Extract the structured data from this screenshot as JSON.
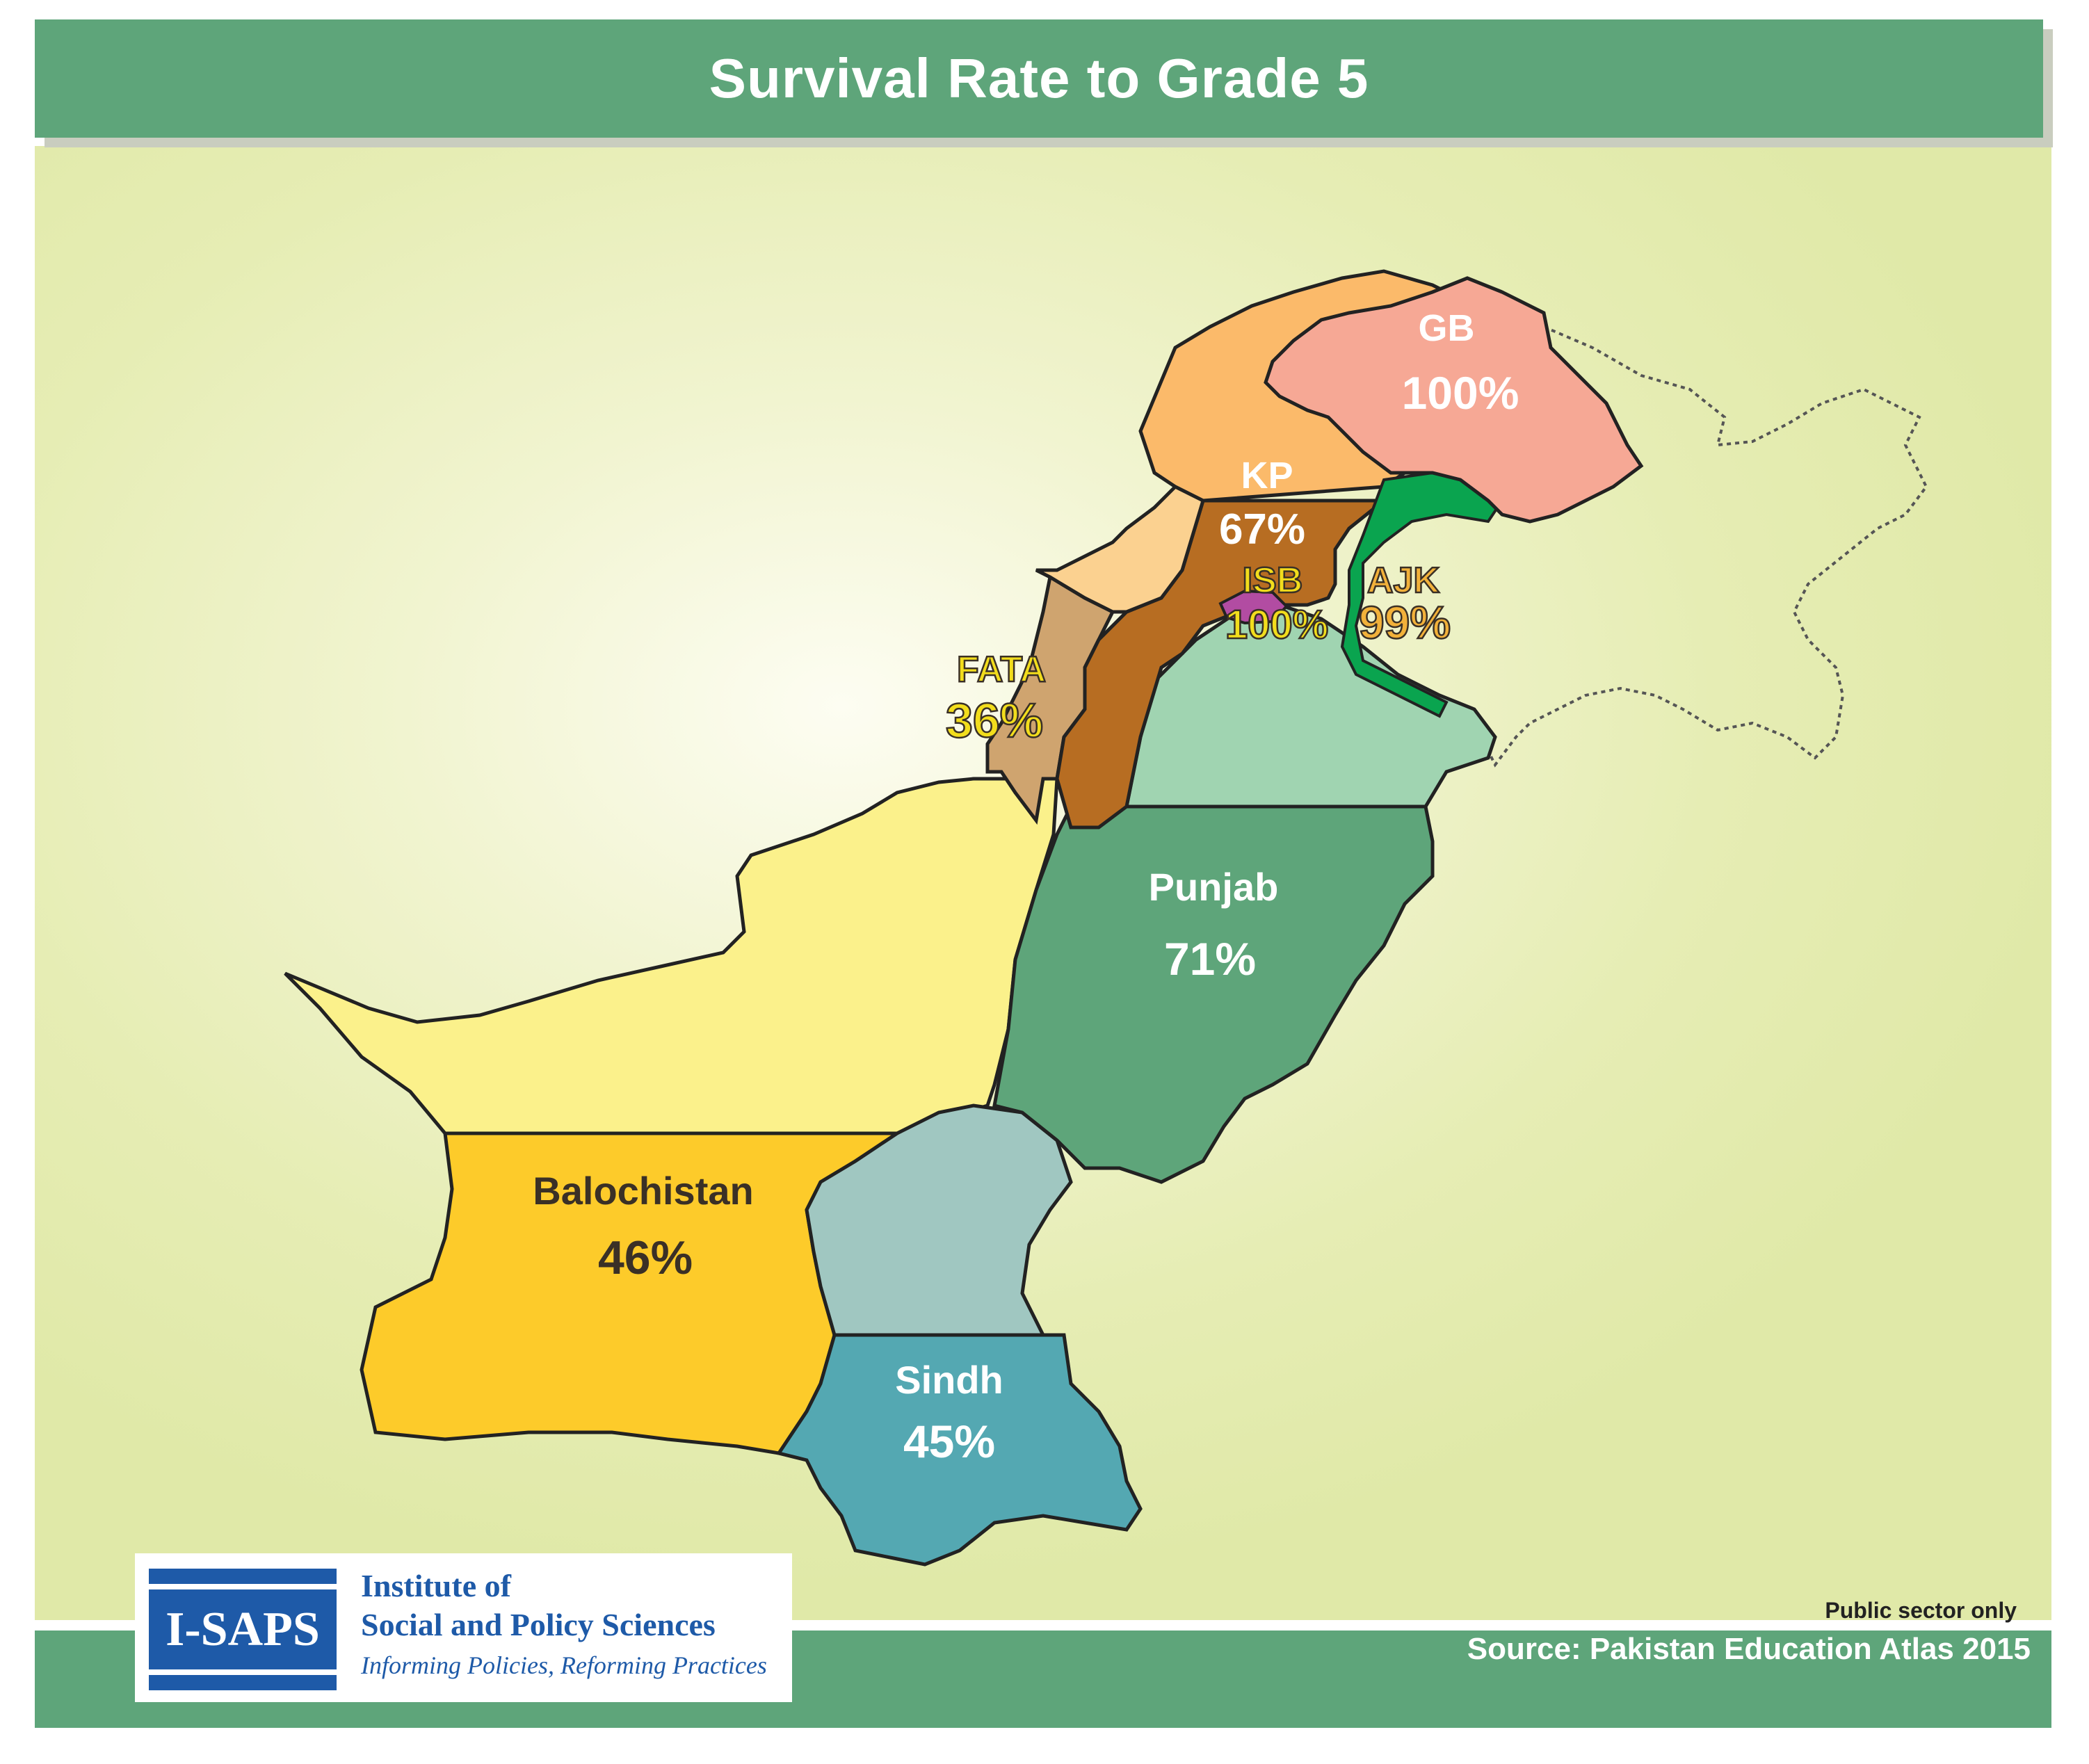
{
  "title": "Survival Rate to Grade 5",
  "footnote": "Public sector only",
  "source": "Source: Pakistan Education Atlas 2015",
  "logo": {
    "box_text": "I-SAPS",
    "line1": "Institute of",
    "line2": "Social and Policy Sciences",
    "tagline": "Informing Policies, Reforming Practices"
  },
  "colors": {
    "header": "#5ea57a",
    "background": "#e6edb4",
    "balochistan": "#fdcb2a",
    "punjab": "#5ea57a",
    "sindh": "#54a8b2",
    "kp": "#b76d22",
    "gb": "#f6a895",
    "fata": "#cfa46f",
    "ajk": "#0aa44f",
    "isb": "#b24ca2"
  },
  "regions": [
    {
      "name": "GB",
      "value": "100%",
      "rate": 100
    },
    {
      "name": "KP",
      "value": "67%",
      "rate": 67
    },
    {
      "name": "ISB",
      "value": "100%",
      "rate": 100
    },
    {
      "name": "AJK",
      "value": "99%",
      "rate": 99
    },
    {
      "name": "FATA",
      "value": "36%",
      "rate": 36
    },
    {
      "name": "Punjab",
      "value": "71%",
      "rate": 71
    },
    {
      "name": "Balochistan",
      "value": "46%",
      "rate": 46
    },
    {
      "name": "Sindh",
      "value": "45%",
      "rate": 45
    }
  ]
}
